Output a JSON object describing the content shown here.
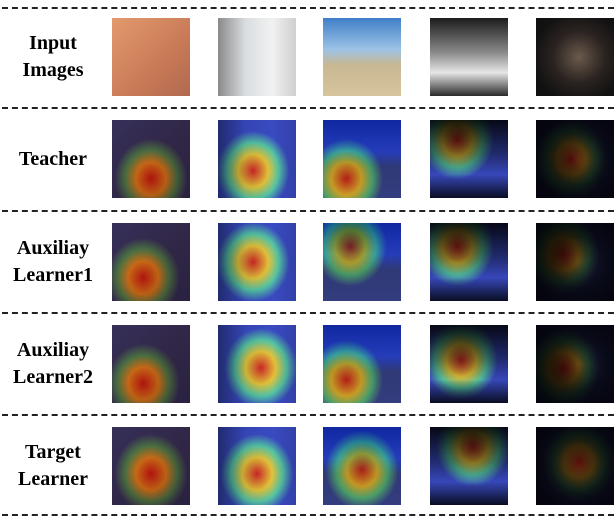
{
  "rows": [
    {
      "label": [
        "Input",
        "Images"
      ]
    },
    {
      "label": [
        "Teacher"
      ]
    },
    {
      "label": [
        "Auxiliay",
        "Learner1"
      ]
    },
    {
      "label": [
        "Auxiliay",
        "Learner2"
      ]
    },
    {
      "label": [
        "Target",
        "Learner"
      ]
    }
  ]
}
